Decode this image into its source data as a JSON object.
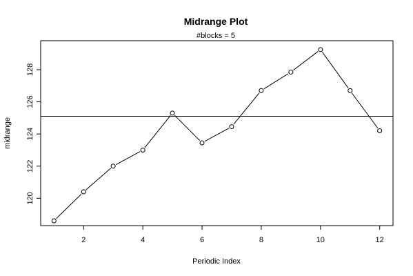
{
  "chart_data": {
    "type": "line",
    "title": "Midrange Plot",
    "subtitle": "#blocks =  5",
    "xlabel": "Periodic Index",
    "ylabel": "midrange",
    "xlim": [
      0.55,
      12.45
    ],
    "ylim": [
      118.3,
      129.8
    ],
    "x_ticks": [
      2,
      4,
      6,
      8,
      10,
      12
    ],
    "y_ticks": [
      120,
      122,
      124,
      126,
      128
    ],
    "x": [
      1,
      2,
      3,
      4,
      5,
      6,
      7,
      8,
      9,
      10,
      11,
      12
    ],
    "values": [
      118.6,
      120.4,
      122.0,
      123.0,
      125.3,
      123.45,
      124.45,
      126.7,
      127.85,
      129.25,
      126.7,
      124.2
    ],
    "reference_line": 125.1,
    "grid": false,
    "colors": {
      "line": "#000000",
      "points": "#000000",
      "background": "#ffffff"
    }
  }
}
